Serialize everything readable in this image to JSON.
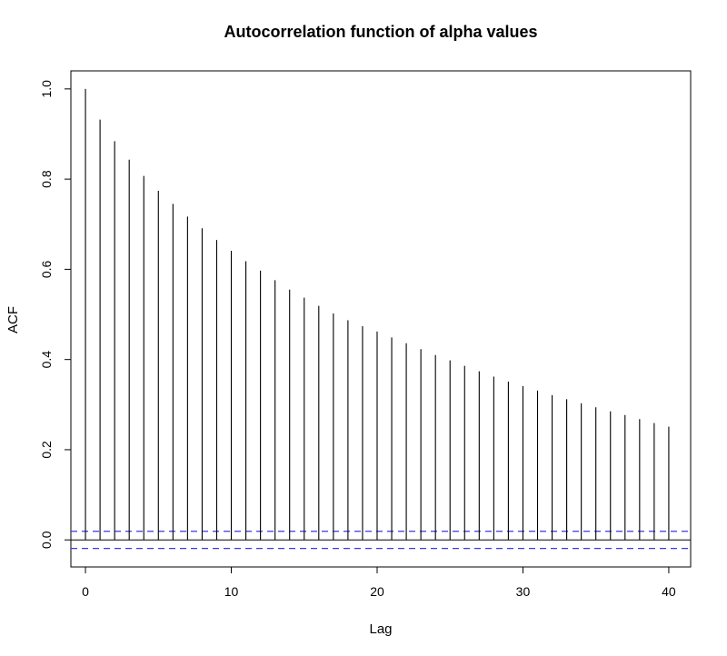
{
  "chart_data": {
    "type": "bar",
    "title": "Autocorrelation function of alpha values",
    "xlabel": "Lag",
    "ylabel": "ACF",
    "xlim": [
      -1,
      41.5
    ],
    "ylim": [
      -0.06,
      1.04
    ],
    "x_ticks": [
      0,
      10,
      20,
      30,
      40
    ],
    "x_tick_labels": [
      "0",
      "10",
      "20",
      "30",
      "40"
    ],
    "y_ticks": [
      0.0,
      0.2,
      0.4,
      0.6,
      0.8,
      1.0
    ],
    "y_tick_labels": [
      "0.0",
      "0.2",
      "0.4",
      "0.6",
      "0.8",
      "1.0"
    ],
    "grid": false,
    "lags": [
      0,
      1,
      2,
      3,
      4,
      5,
      6,
      7,
      8,
      9,
      10,
      11,
      12,
      13,
      14,
      15,
      16,
      17,
      18,
      19,
      20,
      21,
      22,
      23,
      24,
      25,
      26,
      27,
      28,
      29,
      30,
      31,
      32,
      33,
      34,
      35,
      36,
      37,
      38,
      39,
      40
    ],
    "acf": [
      1.0,
      0.932,
      0.884,
      0.843,
      0.807,
      0.774,
      0.745,
      0.717,
      0.691,
      0.665,
      0.641,
      0.618,
      0.597,
      0.576,
      0.555,
      0.537,
      0.519,
      0.502,
      0.487,
      0.474,
      0.462,
      0.449,
      0.436,
      0.423,
      0.41,
      0.398,
      0.386,
      0.374,
      0.362,
      0.351,
      0.341,
      0.331,
      0.321,
      0.312,
      0.303,
      0.294,
      0.285,
      0.277,
      0.268,
      0.259,
      0.251
    ],
    "confidence_bounds": [
      0.019,
      -0.019
    ],
    "colors": {
      "bars": "#000000",
      "confidence": "#3a3ae6",
      "zero_line": "#000000"
    }
  }
}
